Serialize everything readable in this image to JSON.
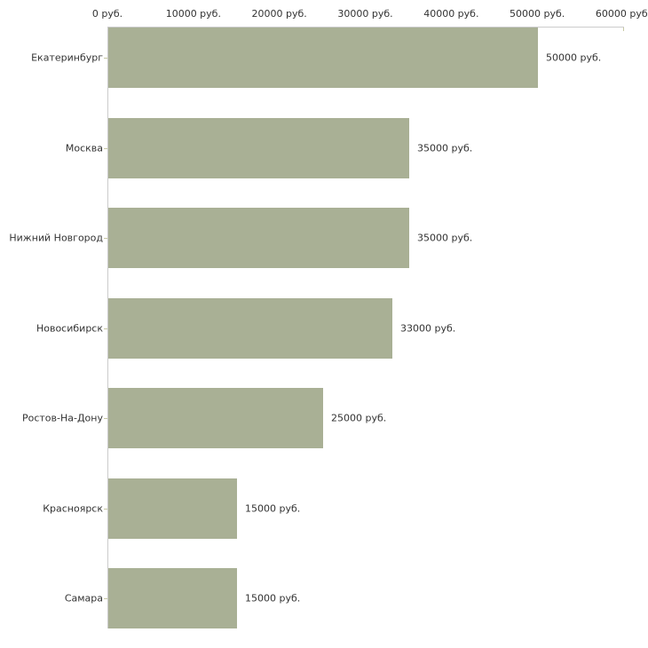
{
  "chart_data": {
    "type": "bar",
    "orientation": "horizontal",
    "title": "",
    "xlabel": "",
    "ylabel": "",
    "grid": false,
    "legend": false,
    "categories": [
      "Екатеринбург",
      "Москва",
      "Нижний Новгород",
      "Новосибирск",
      "Ростов-На-Дону",
      "Красноярск",
      "Самара"
    ],
    "values": [
      50000,
      35000,
      35000,
      33000,
      25000,
      15000,
      15000
    ],
    "value_labels": [
      "50000 руб.",
      "35000 руб.",
      "35000 руб.",
      "33000 руб.",
      "25000 руб.",
      "15000 руб.",
      "15000 руб."
    ],
    "x_axis": {
      "position": "top",
      "min": 0,
      "max": 60000,
      "tick_step": 10000,
      "tick_labels": [
        "0 руб.",
        "10000 руб.",
        "20000 руб.",
        "30000 руб.",
        "40000 руб.",
        "50000 руб.",
        "60000 руб."
      ]
    }
  },
  "colors": {
    "bar": "#a9b095",
    "axis_line": "#cbcbcb",
    "tick": "#c6c7a3",
    "text": "#333333",
    "background": "#ffffff"
  }
}
